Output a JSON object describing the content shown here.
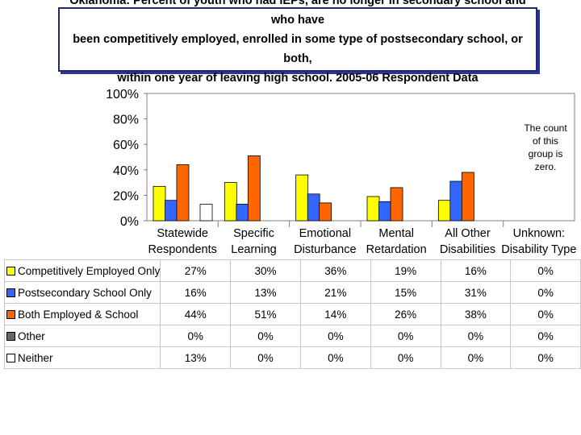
{
  "title": "Oklahoma:  Percent of youth who had IEPs, are no longer in secondary school and who have\nbeen competitively employed, enrolled in some type of postsecondary school, or both,\nwithin one year of leaving high school.    2005-06  Respondent Data",
  "note": "The count of this group is zero.",
  "chart_data": {
    "type": "bar",
    "title": "Oklahoma:  Percent of youth who had IEPs, are no longer in secondary school and who have been competitively employed, enrolled in some type of postsecondary school, or both, within one year of leaving high school.    2005-06  Respondent Data",
    "categories": [
      "Statewide\nRespondents",
      "Specific\nLearning",
      "Emotional\nDisturbance",
      "Mental\nRetardation",
      "All Other\nDisabilities",
      "Unknown:\nDisability Type"
    ],
    "y_ticks": [
      "100%",
      "80%",
      "60%",
      "40%",
      "20%",
      "0%"
    ],
    "ylim": [
      0,
      100
    ],
    "xlabel": "",
    "ylabel": "",
    "series": [
      {
        "name": "Competitively Employed Only",
        "color": "#ffff00",
        "values": [
          27,
          30,
          36,
          19,
          16,
          0
        ],
        "labels": [
          "27%",
          "30%",
          "36%",
          "19%",
          "16%",
          "0%"
        ]
      },
      {
        "name": "Postsecondary School Only",
        "color": "#3366ff",
        "values": [
          16,
          13,
          21,
          15,
          31,
          0
        ],
        "labels": [
          "16%",
          "13%",
          "21%",
          "15%",
          "31%",
          "0%"
        ]
      },
      {
        "name": "Both Employed & School",
        "color": "#ff6600",
        "values": [
          44,
          51,
          14,
          26,
          38,
          0
        ],
        "labels": [
          "44%",
          "51%",
          "14%",
          "26%",
          "38%",
          "0%"
        ]
      },
      {
        "name": "Other",
        "color": "#666666",
        "values": [
          0,
          0,
          0,
          0,
          0,
          0
        ],
        "labels": [
          "0%",
          "0%",
          "0%",
          "0%",
          "0%",
          "0%"
        ]
      },
      {
        "name": "Neither",
        "color": "#ffffff",
        "values": [
          13,
          0,
          0,
          0,
          0,
          0
        ],
        "labels": [
          "13%",
          "0%",
          "0%",
          "0%",
          "0%",
          "0%"
        ]
      }
    ]
  }
}
